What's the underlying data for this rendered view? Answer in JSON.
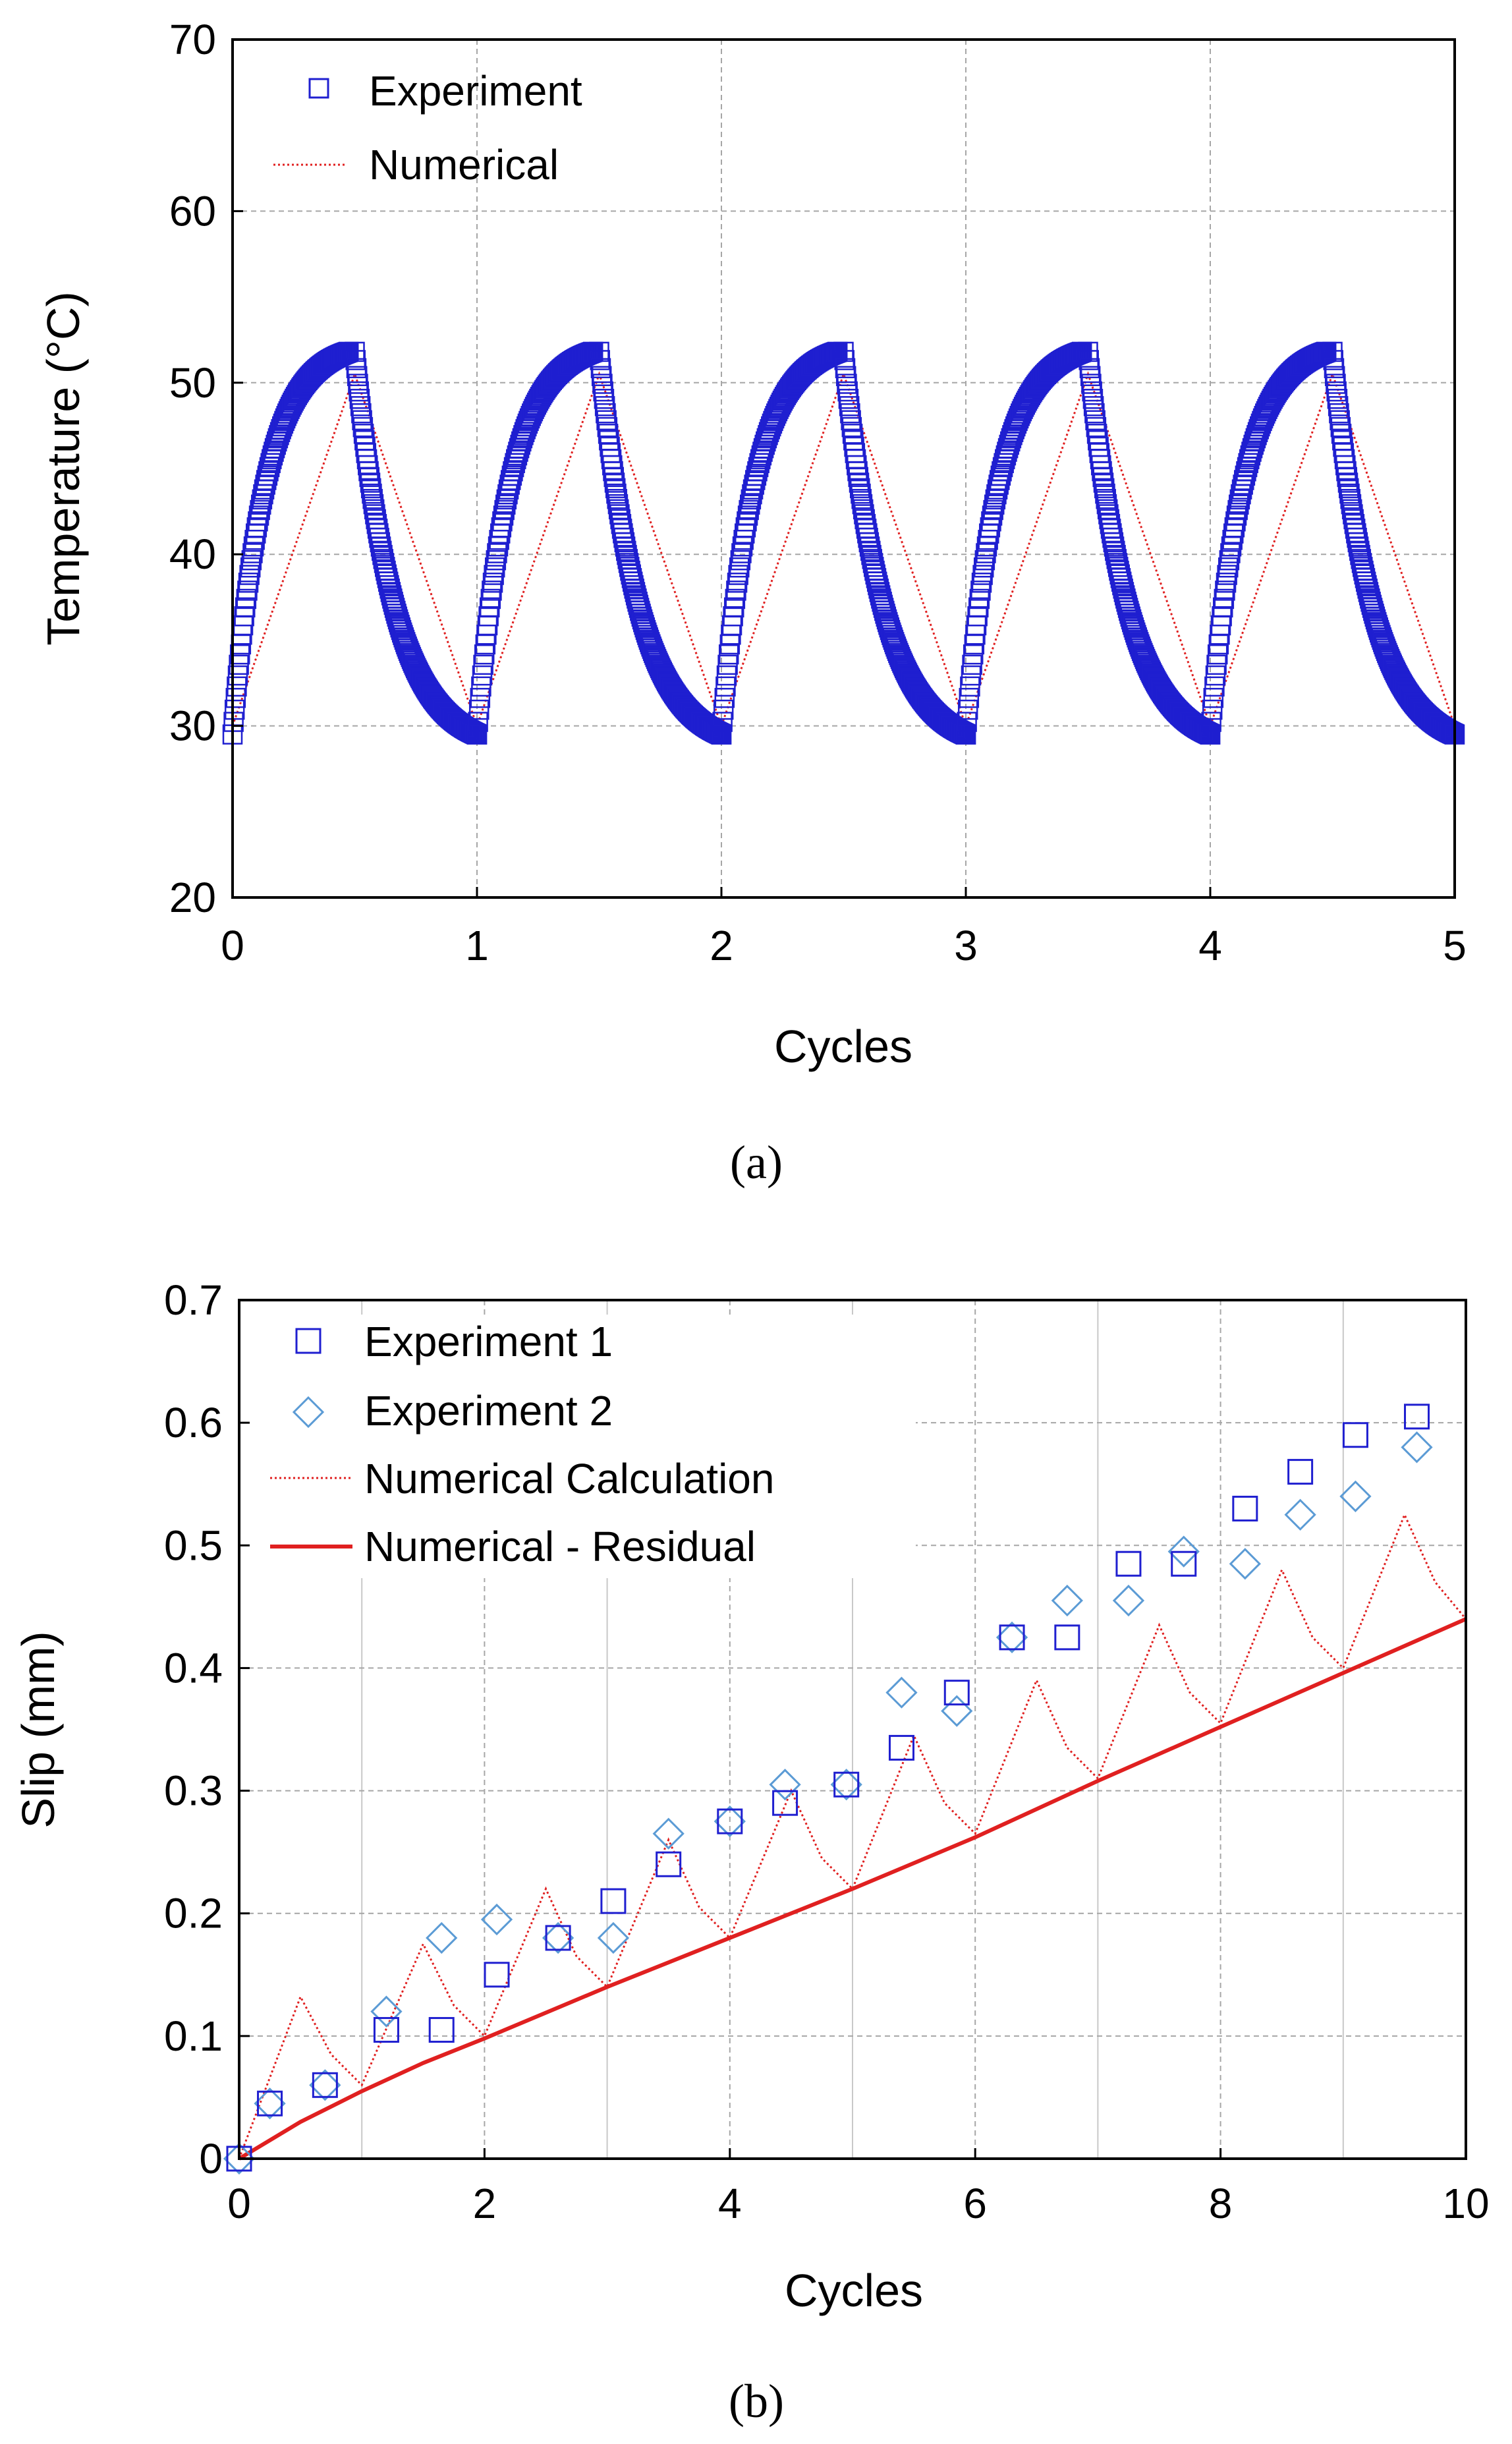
{
  "colors": {
    "experiment": "#1f1fd0",
    "experiment2": "#5b9bd5",
    "numerical": "#e02020",
    "residual": "#e02020",
    "grid": "#a6a6a6"
  },
  "chart_data": [
    {
      "id": "a",
      "type": "scatter",
      "caption": "(a)",
      "xlabel": "Cycles",
      "ylabel": "Temperature (°C)",
      "xlim": [
        0,
        5
      ],
      "ylim": [
        20,
        70
      ],
      "xticks": [
        0,
        1,
        2,
        3,
        4,
        5
      ],
      "yticks": [
        20,
        30,
        40,
        50,
        60,
        70
      ],
      "legend_position": "top-left",
      "series": [
        {
          "name": "Experiment",
          "style": "markers-square",
          "heat_rise": 22,
          "heat_tau": 0.14,
          "cool_tau": 0.14,
          "cycles": 5,
          "base": 29.5,
          "peak": 51.8
        },
        {
          "name": "Numerical",
          "style": "dotted-line",
          "x": [
            0,
            0.5,
            1,
            1.5,
            2,
            2.5,
            3,
            3.5,
            4,
            4.5,
            5
          ],
          "y": [
            30,
            50.5,
            30,
            50.5,
            30,
            50.5,
            30,
            50.5,
            30,
            50.5,
            30
          ]
        }
      ]
    },
    {
      "id": "b",
      "type": "scatter",
      "caption": "(b)",
      "xlabel": "Cycles",
      "ylabel": "Slip (mm)",
      "xlim": [
        0,
        10
      ],
      "ylim": [
        0,
        0.7
      ],
      "xticks": [
        0,
        2,
        4,
        6,
        8,
        10
      ],
      "xticks_minor": [
        1,
        3,
        5,
        7,
        9
      ],
      "yticks": [
        0,
        0.1,
        0.2,
        0.3,
        0.4,
        0.5,
        0.6,
        0.7
      ],
      "ytick_labels": [
        "0",
        "0.1",
        "0.2",
        "0.3",
        "0.4",
        "0.5",
        "0.6",
        "0.7"
      ],
      "legend_position": "top-left",
      "series": [
        {
          "name": "Experiment 1",
          "style": "markers-square",
          "x": [
            0,
            0.25,
            0.7,
            1.2,
            1.65,
            2.1,
            2.6,
            3.05,
            3.5,
            4.0,
            4.45,
            4.95,
            5.4,
            5.85,
            6.3,
            6.75,
            7.25,
            7.7,
            8.2,
            8.65,
            9.1,
            9.6
          ],
          "y": [
            0,
            0.045,
            0.06,
            0.105,
            0.105,
            0.15,
            0.18,
            0.21,
            0.24,
            0.275,
            0.29,
            0.305,
            0.335,
            0.38,
            0.425,
            0.425,
            0.485,
            0.485,
            0.53,
            0.56,
            0.59,
            0.605
          ]
        },
        {
          "name": "Experiment 2",
          "style": "markers-diamond",
          "x": [
            0,
            0.25,
            0.7,
            1.2,
            1.65,
            2.1,
            2.6,
            3.05,
            3.5,
            4.0,
            4.45,
            4.95,
            5.4,
            5.85,
            6.3,
            6.75,
            7.25,
            7.7,
            8.2,
            8.65,
            9.1,
            9.6
          ],
          "y": [
            0,
            0.045,
            0.06,
            0.12,
            0.18,
            0.195,
            0.18,
            0.18,
            0.265,
            0.275,
            0.305,
            0.305,
            0.38,
            0.365,
            0.425,
            0.455,
            0.455,
            0.495,
            0.485,
            0.525,
            0.54,
            0.58
          ]
        },
        {
          "name": "Numerical Calculation",
          "style": "dotted-line",
          "x": [
            0,
            0.5,
            0.75,
            1,
            1.5,
            1.75,
            2,
            2.5,
            2.75,
            3,
            3.5,
            3.75,
            4,
            4.5,
            4.75,
            5,
            5.5,
            5.75,
            6,
            6.5,
            6.75,
            7,
            7.5,
            7.75,
            8,
            8.5,
            8.75,
            9,
            9.5,
            9.75,
            10
          ],
          "y": [
            0,
            0.132,
            0.085,
            0.06,
            0.175,
            0.125,
            0.1,
            0.22,
            0.165,
            0.14,
            0.26,
            0.205,
            0.18,
            0.3,
            0.245,
            0.22,
            0.345,
            0.29,
            0.265,
            0.39,
            0.335,
            0.31,
            0.435,
            0.38,
            0.355,
            0.48,
            0.425,
            0.4,
            0.525,
            0.47,
            0.44
          ]
        },
        {
          "name": "Numerical - Residual",
          "style": "solid-line",
          "x": [
            0,
            0.5,
            1,
            1.5,
            2,
            3,
            4,
            5,
            6,
            7,
            8,
            9,
            10
          ],
          "y": [
            0,
            0.03,
            0.055,
            0.078,
            0.098,
            0.14,
            0.18,
            0.22,
            0.262,
            0.308,
            0.352,
            0.396,
            0.44
          ]
        }
      ]
    }
  ]
}
